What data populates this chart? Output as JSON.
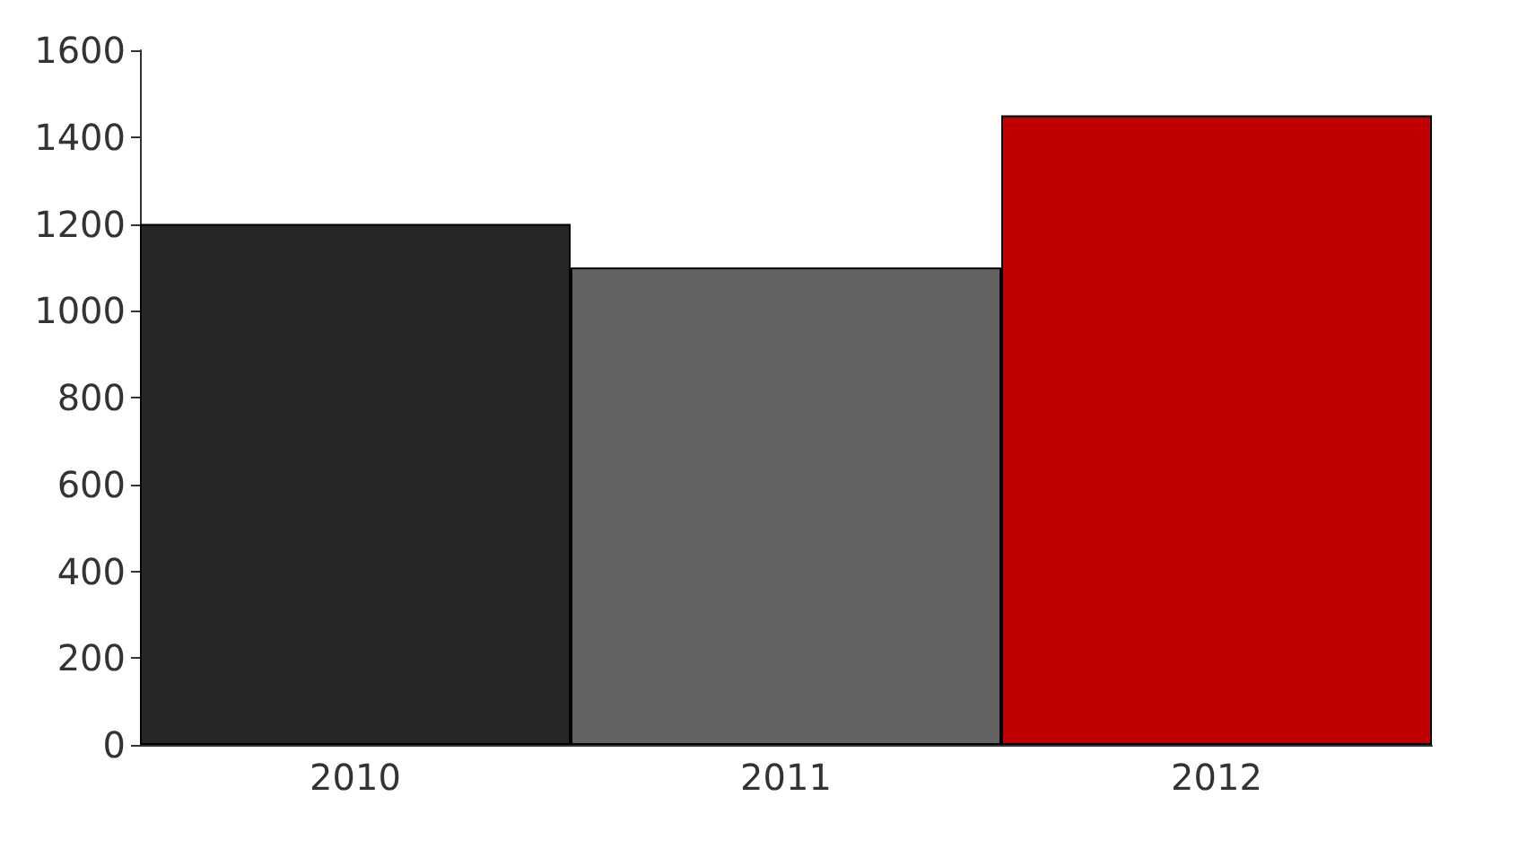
{
  "chart_data": {
    "type": "bar",
    "categories": [
      "2010",
      "2011",
      "2012"
    ],
    "values": [
      1200,
      1100,
      1450
    ],
    "colors": [
      "#262626",
      "#626262",
      "#c00000"
    ],
    "ylim": [
      0,
      1600
    ],
    "yticks": [
      0,
      200,
      400,
      600,
      800,
      1000,
      1200,
      1400,
      1600
    ],
    "grid": false
  }
}
